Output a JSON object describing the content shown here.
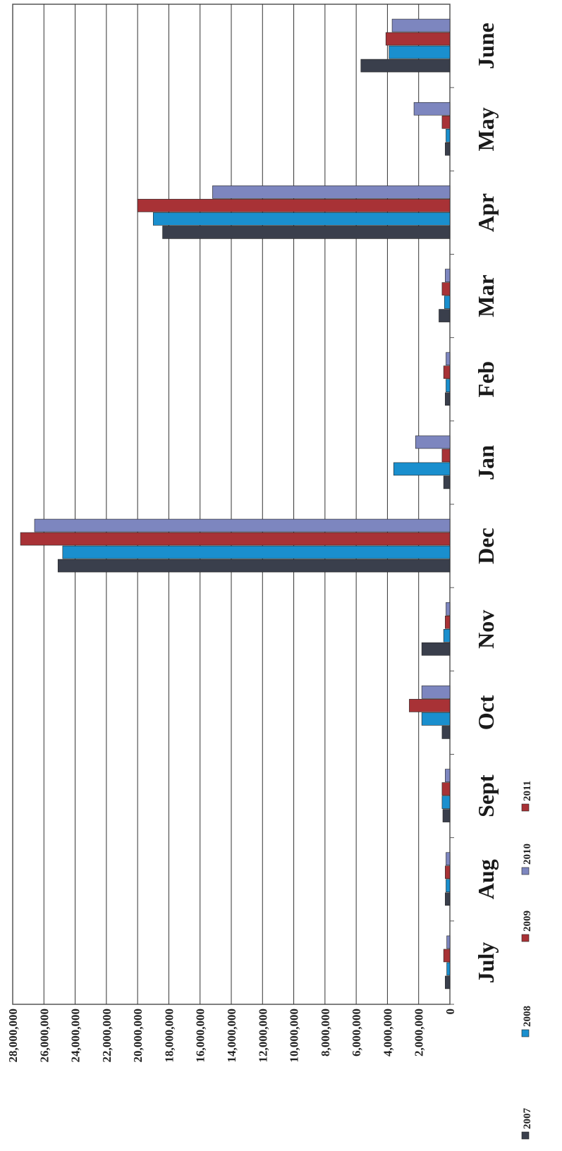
{
  "chart_data": {
    "type": "bar",
    "orientation": "vertical-bars-rotated-90",
    "categories": [
      "July",
      "Aug",
      "Sept",
      "Oct",
      "Nov",
      "Dec",
      "Jan",
      "Feb",
      "Mar",
      "Apr",
      "May",
      "June"
    ],
    "series": [
      {
        "name": "2007",
        "color": "#3a3f4c",
        "values": [
          300000,
          300000,
          450000,
          500000,
          1800000,
          25100000,
          400000,
          300000,
          700000,
          18400000,
          300000,
          5700000
        ]
      },
      {
        "name": "2008",
        "color": "#1a8fce",
        "values": [
          200000,
          250000,
          500000,
          1800000,
          400000,
          24800000,
          3600000,
          250000,
          350000,
          19000000,
          250000,
          3900000
        ]
      },
      {
        "name": "2009",
        "color": "#a83236",
        "values": [
          400000,
          300000,
          500000,
          2600000,
          300000,
          27500000,
          500000,
          400000,
          500000,
          20000000,
          500000,
          4100000
        ]
      },
      {
        "name": "2010",
        "color": "#7d86bf",
        "values": [
          200000,
          250000,
          300000,
          1800000,
          250000,
          26600000,
          2200000,
          250000,
          300000,
          15200000,
          2300000,
          3700000
        ]
      },
      {
        "name": "2011",
        "color": "#a83236",
        "values": [
          100000,
          100000,
          200000,
          0,
          0,
          0,
          0,
          0,
          0,
          0,
          0,
          0
        ]
      }
    ],
    "yticks": [
      "0",
      "2,000,000",
      "4,000,000",
      "6,000,000",
      "8,000,000",
      "10,000,000",
      "12,000,000",
      "14,000,000",
      "16,000,000",
      "18,000,000",
      "20,000,000",
      "22,000,000",
      "24,000,000",
      "26,000,000",
      "28,000,000"
    ],
    "ylim": [
      0,
      28000000
    ],
    "grid": true,
    "legend_position": "bottom",
    "legend_labels": [
      "2007",
      "2008",
      "2009",
      "2010",
      "2011"
    ]
  }
}
